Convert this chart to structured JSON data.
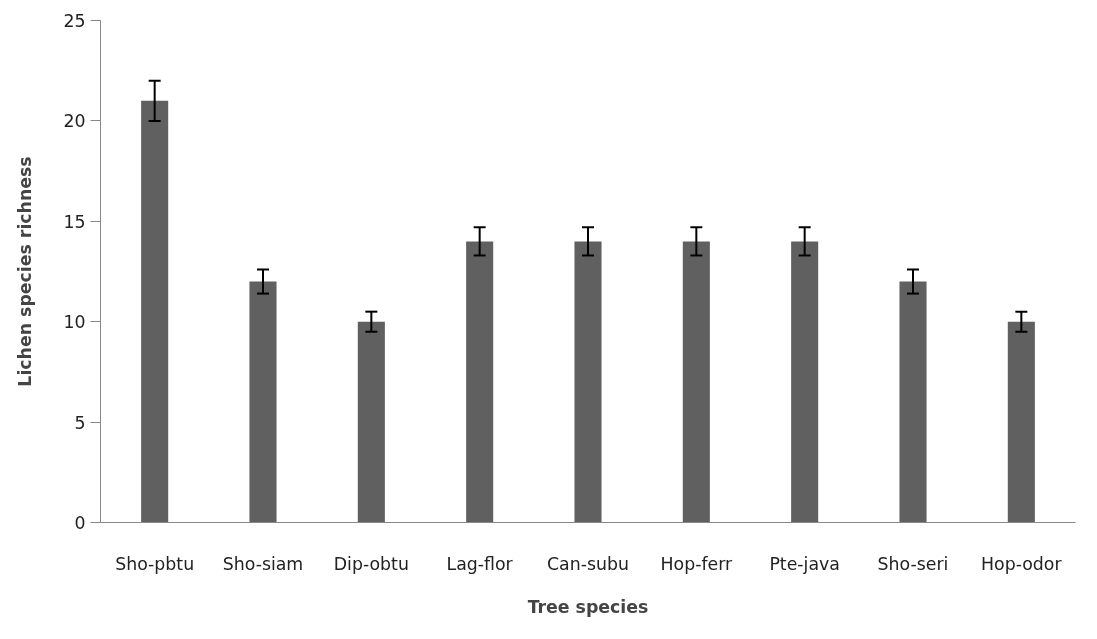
{
  "chart_data": {
    "type": "bar",
    "xlabel": "Tree species",
    "ylabel": "Lichen species richness",
    "categories": [
      "Sho-pbtu",
      "Sho-siam",
      "Dip-obtu",
      "Lag-flor",
      "Can-subu",
      "Hop-ferr",
      "Pte-java",
      "Sho-seri",
      "Hop-odor"
    ],
    "values": [
      21,
      12,
      10,
      14,
      14,
      14,
      14,
      12,
      10
    ],
    "errors": [
      1,
      0.6,
      0.5,
      0.7,
      0.7,
      0.7,
      0.7,
      0.6,
      0.5
    ],
    "color": "#606060",
    "ylim": [
      0,
      25
    ],
    "yticks": [
      0,
      5,
      10,
      15,
      20,
      25
    ],
    "grid": false
  }
}
